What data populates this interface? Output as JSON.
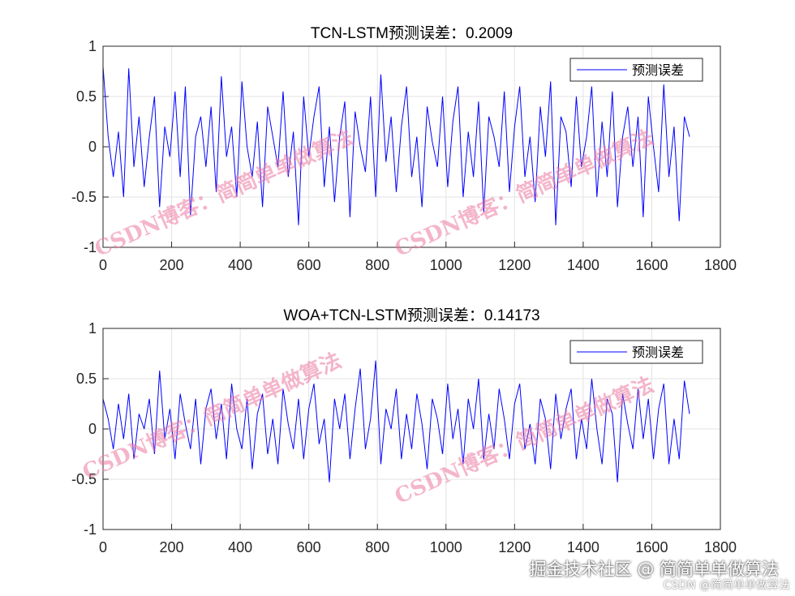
{
  "chart_data": [
    {
      "type": "line",
      "title": "TCN-LSTM预测误差：0.2009",
      "xlim": [
        0,
        1800
      ],
      "ylim": [
        -1,
        1
      ],
      "xticks": [
        "0",
        "200",
        "400",
        "600",
        "800",
        "1000",
        "1200",
        "1400",
        "1600",
        "1800"
      ],
      "yticks": [
        "1",
        "0.5",
        "0",
        "-0.5",
        "-1"
      ],
      "grid": true,
      "legend_placement": "top-right",
      "color": "#0000ff",
      "series": [
        {
          "name": "预测误差",
          "x_step": 15,
          "values": [
            0.8,
            0.1,
            -0.3,
            0.15,
            -0.5,
            0.78,
            -0.2,
            0.3,
            -0.4,
            0.1,
            0.5,
            -0.6,
            0.2,
            -0.1,
            0.55,
            -0.3,
            0.6,
            -0.68,
            0.1,
            0.3,
            -0.2,
            0.4,
            -0.45,
            0.7,
            -0.1,
            0.2,
            -0.5,
            0.65,
            0.0,
            -0.3,
            0.25,
            -0.6,
            0.4,
            0.1,
            -0.2,
            0.55,
            -0.3,
            0.15,
            -0.78,
            0.5,
            -0.1,
            0.3,
            0.6,
            -0.4,
            0.2,
            -0.55,
            0.1,
            0.45,
            -0.7,
            0.35,
            0.0,
            -0.25,
            0.5,
            -0.5,
            0.72,
            -0.15,
            0.3,
            -0.45,
            0.2,
            0.6,
            -0.3,
            0.1,
            -0.6,
            0.4,
            0.05,
            -0.2,
            0.5,
            -0.4,
            0.25,
            0.6,
            -0.5,
            0.15,
            -0.3,
            0.45,
            -0.65,
            0.3,
            0.1,
            -0.2,
            0.55,
            -0.45,
            0.2,
            0.6,
            -0.3,
            0.1,
            -0.55,
            0.4,
            -0.1,
            0.65,
            -0.78,
            0.3,
            0.15,
            -0.4,
            0.5,
            -0.2,
            0.1,
            0.6,
            -0.5,
            0.25,
            -0.3,
            0.55,
            -0.6,
            0.1,
            0.4,
            -0.2,
            0.3,
            -0.7,
            0.5,
            0.0,
            -0.45,
            0.62,
            -0.3,
            0.2,
            -0.74,
            0.3,
            0.1
          ]
        }
      ]
    },
    {
      "type": "line",
      "title": "WOA+TCN-LSTM预测误差：0.14173",
      "xlim": [
        0,
        1800
      ],
      "ylim": [
        -1,
        1
      ],
      "xticks": [
        "0",
        "200",
        "400",
        "600",
        "800",
        "1000",
        "1200",
        "1400",
        "1600",
        "1800"
      ],
      "yticks": [
        "1",
        "0.5",
        "0",
        "-0.5",
        "-1"
      ],
      "grid": true,
      "legend_placement": "top-right",
      "color": "#0000ff",
      "series": [
        {
          "name": "预测误差",
          "x_step": 15,
          "values": [
            0.3,
            0.1,
            -0.2,
            0.25,
            -0.1,
            0.35,
            -0.3,
            0.15,
            0.0,
            0.3,
            -0.25,
            0.58,
            -0.1,
            0.2,
            -0.3,
            0.35,
            0.05,
            -0.2,
            0.3,
            -0.35,
            0.2,
            0.4,
            -0.1,
            0.25,
            -0.3,
            0.45,
            0.0,
            -0.2,
            0.3,
            -0.4,
            0.15,
            0.35,
            -0.25,
            0.1,
            -0.35,
            0.4,
            0.05,
            -0.2,
            0.3,
            -0.3,
            0.2,
            0.45,
            -0.15,
            0.1,
            -0.53,
            0.3,
            0.0,
            0.35,
            -0.3,
            0.2,
            0.6,
            -0.2,
            0.1,
            0.68,
            -0.35,
            0.2,
            0.0,
            0.4,
            -0.3,
            0.15,
            -0.2,
            0.35,
            0.05,
            -0.4,
            0.3,
            0.1,
            -0.25,
            0.45,
            -0.1,
            0.2,
            -0.35,
            0.3,
            0.0,
            0.5,
            -0.3,
            0.15,
            -0.2,
            0.4,
            0.1,
            -0.3,
            0.25,
            0.45,
            -0.2,
            0.05,
            -0.35,
            0.3,
            0.1,
            -0.4,
            0.35,
            -0.1,
            0.2,
            0.4,
            -0.3,
            0.1,
            -0.2,
            0.5,
            0.0,
            -0.35,
            0.3,
            0.15,
            -0.53,
            0.35,
            0.05,
            -0.2,
            0.4,
            -0.1,
            0.3,
            -0.3,
            0.2,
            0.45,
            -0.35,
            0.1,
            -0.3,
            0.48,
            0.15
          ]
        }
      ]
    }
  ],
  "watermarks": [
    "CSDN博客：简简单单做算法",
    "CSDN博客：简简单单做算法",
    "CSDN博客：简简单单做算法",
    "CSDN博客：简简单单做算法"
  ],
  "footer": {
    "juejin": "掘金技术社区 @ 简简单单做算法",
    "csdn": "CSDN @简简单单做算法"
  }
}
